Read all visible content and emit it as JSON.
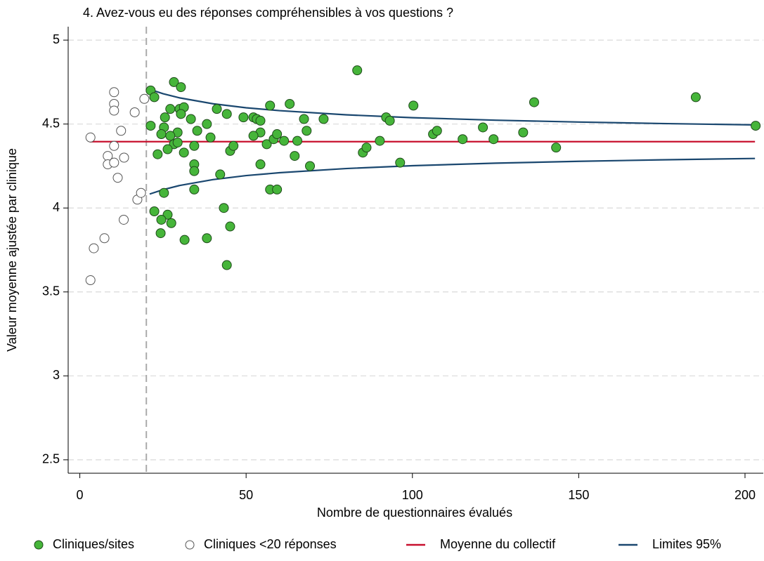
{
  "chart_data": {
    "type": "scatter",
    "title": "4. Avez-vous eu des réponses compréhensibles à vos questions ?",
    "x_label": "Nombre de questionnaires évalués",
    "y_label": "Valeur moyenne ajustée par clinique",
    "xlim": [
      -3.5,
      205.5
    ],
    "ylim": [
      2.42,
      5.08
    ],
    "xticks": [
      0,
      50,
      100,
      150,
      200
    ],
    "yticks": [
      2.5,
      3,
      3.5,
      4,
      4.5,
      5
    ],
    "grid": true,
    "reference_x": 20,
    "series": [
      {
        "name": "Cliniques/sites",
        "kind": "scatter",
        "color": "#46b53a",
        "x": [
          21.3,
          21.3,
          22.4,
          28.3,
          30.4,
          27.2,
          30,
          31.3,
          25.6,
          30.4,
          33.4,
          25.3,
          24.5,
          29.4,
          27.2,
          28.3,
          29.4,
          23.4,
          26.4,
          31.3,
          34.4,
          35.3,
          38.2,
          39.3,
          41.2,
          44.2,
          49.2,
          52.2,
          53.2,
          54.3,
          57.2,
          63.1,
          67.4,
          73.3,
          83.4,
          92.1,
          93.2,
          100.3,
          136.6,
          185.2,
          203.2,
          54.3,
          52.2,
          45.2,
          46.2,
          56.2,
          58.3,
          59.3,
          61.4,
          65.4,
          68.2,
          69.2,
          64.6,
          54.3,
          34.4,
          34.4,
          42.2,
          34.4,
          57.2,
          59.3,
          25.3,
          85.1,
          86.2,
          90.2,
          96.3,
          106.2,
          107.4,
          115.1,
          121.2,
          124.4,
          133.3,
          143.2,
          22.4,
          26.4,
          24.5,
          27.5,
          24.3,
          31.5,
          38.2,
          43.3,
          45.2,
          44.2
        ],
        "values": [
          4.7,
          4.49,
          4.66,
          4.75,
          4.72,
          4.59,
          4.59,
          4.6,
          4.54,
          4.56,
          4.53,
          4.48,
          4.44,
          4.45,
          4.43,
          4.38,
          4.39,
          4.32,
          4.35,
          4.33,
          4.37,
          4.46,
          4.5,
          4.42,
          4.59,
          4.56,
          4.54,
          4.54,
          4.53,
          4.52,
          4.61,
          4.62,
          4.53,
          4.53,
          4.82,
          4.54,
          4.52,
          4.61,
          4.63,
          4.66,
          4.49,
          4.45,
          4.43,
          4.34,
          4.37,
          4.38,
          4.41,
          4.44,
          4.4,
          4.4,
          4.46,
          4.25,
          4.31,
          4.26,
          4.26,
          4.22,
          4.2,
          4.11,
          4.11,
          4.11,
          4.09,
          4.33,
          4.36,
          4.4,
          4.27,
          4.44,
          4.46,
          4.41,
          4.48,
          4.41,
          4.45,
          4.36,
          3.98,
          3.96,
          3.93,
          3.91,
          3.85,
          3.81,
          3.82,
          4.0,
          3.89,
          3.66
        ]
      },
      {
        "name": "Cliniques <20 réponses",
        "kind": "scatter",
        "color": "#ffffff",
        "x": [
          3.2,
          4.2,
          3.2,
          7.4,
          10.3,
          10.3,
          10.3,
          10.3,
          8.4,
          8.4,
          10.3,
          11.4,
          13.3,
          12.4,
          16.5,
          19.4,
          13.2,
          17.3,
          18.4
        ],
        "values": [
          4.42,
          3.76,
          3.57,
          3.82,
          4.69,
          4.62,
          4.58,
          4.37,
          4.31,
          4.26,
          4.27,
          4.18,
          4.3,
          4.46,
          4.57,
          4.65,
          3.93,
          4.05,
          4.09
        ]
      },
      {
        "name": "Moyenne du collectif",
        "kind": "line",
        "color": "#c8102e",
        "x": [
          3,
          203
        ],
        "values": [
          4.395,
          4.395
        ]
      },
      {
        "name": "Limites 95%",
        "kind": "line",
        "color": "#1a476f",
        "x": [
          21,
          25,
          30,
          40,
          50,
          60,
          80,
          100,
          125,
          150,
          175,
          203
        ],
        "values": [
          4.707,
          4.681,
          4.656,
          4.621,
          4.597,
          4.58,
          4.555,
          4.538,
          4.523,
          4.512,
          4.503,
          4.495
        ]
      },
      {
        "name": "Limites 95%",
        "kind": "line",
        "color": "#1a476f",
        "in_legend": false,
        "x": [
          21,
          25,
          30,
          40,
          50,
          60,
          80,
          100,
          125,
          150,
          175,
          203
        ],
        "values": [
          4.083,
          4.109,
          4.134,
          4.169,
          4.193,
          4.21,
          4.235,
          4.252,
          4.267,
          4.278,
          4.287,
          4.295
        ]
      }
    ]
  }
}
